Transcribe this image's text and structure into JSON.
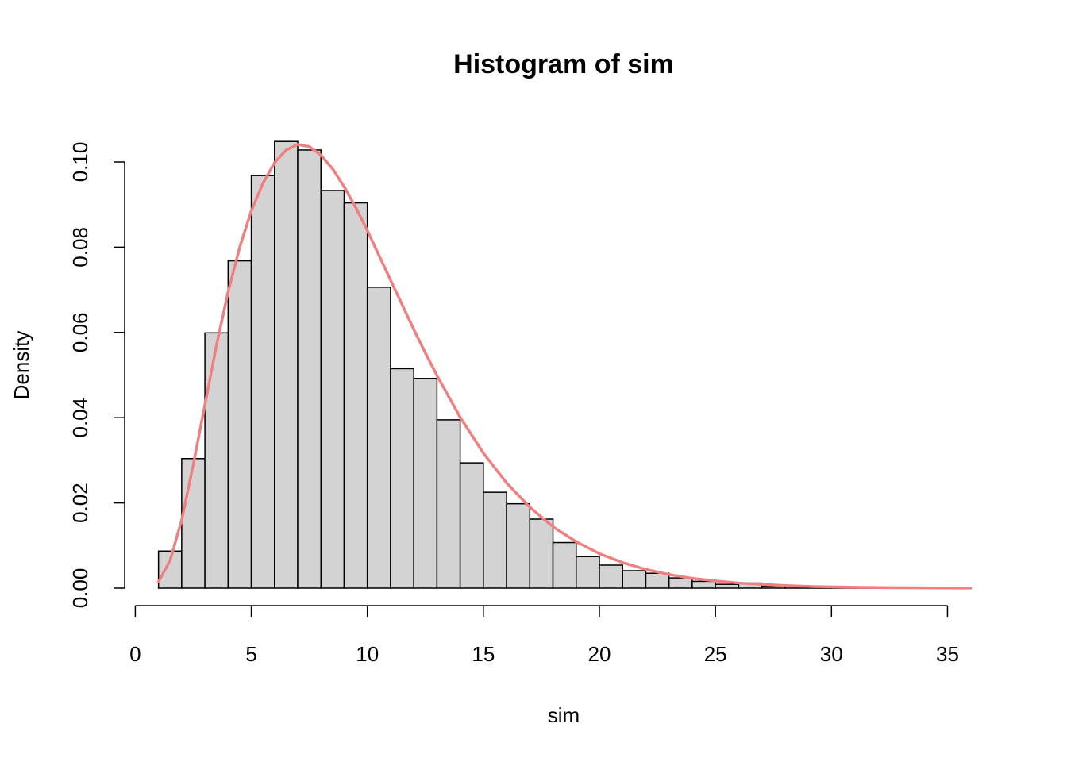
{
  "chart_data": {
    "type": "bar",
    "title": "Histogram of sim",
    "xlabel": "sim",
    "ylabel": "Density",
    "xlim": [
      0,
      36
    ],
    "ylim": [
      0,
      0.105
    ],
    "x_ticks": [
      0,
      5,
      10,
      15,
      20,
      25,
      30,
      35
    ],
    "x_tick_labels": [
      "0",
      "5",
      "10",
      "15",
      "20",
      "25",
      "30",
      "35"
    ],
    "y_ticks": [
      0,
      0.02,
      0.04,
      0.06,
      0.08,
      0.1
    ],
    "y_tick_labels": [
      "0.00",
      "0.02",
      "0.04",
      "0.06",
      "0.08",
      "0.10"
    ],
    "bins": [
      {
        "start": 1,
        "end": 2,
        "density": 0.0087
      },
      {
        "start": 2,
        "end": 3,
        "density": 0.0304
      },
      {
        "start": 3,
        "end": 4,
        "density": 0.0599
      },
      {
        "start": 4,
        "end": 5,
        "density": 0.0768
      },
      {
        "start": 5,
        "end": 6,
        "density": 0.0968
      },
      {
        "start": 6,
        "end": 7,
        "density": 0.1048
      },
      {
        "start": 7,
        "end": 8,
        "density": 0.1028
      },
      {
        "start": 8,
        "end": 9,
        "density": 0.0933
      },
      {
        "start": 9,
        "end": 10,
        "density": 0.0904
      },
      {
        "start": 10,
        "end": 11,
        "density": 0.0706
      },
      {
        "start": 11,
        "end": 12,
        "density": 0.0515
      },
      {
        "start": 12,
        "end": 13,
        "density": 0.0492
      },
      {
        "start": 13,
        "end": 14,
        "density": 0.0395
      },
      {
        "start": 14,
        "end": 15,
        "density": 0.0294
      },
      {
        "start": 15,
        "end": 16,
        "density": 0.0225
      },
      {
        "start": 16,
        "end": 17,
        "density": 0.0198
      },
      {
        "start": 17,
        "end": 18,
        "density": 0.0162
      },
      {
        "start": 18,
        "end": 19,
        "density": 0.0107
      },
      {
        "start": 19,
        "end": 20,
        "density": 0.0074
      },
      {
        "start": 20,
        "end": 21,
        "density": 0.0054
      },
      {
        "start": 21,
        "end": 22,
        "density": 0.0041
      },
      {
        "start": 22,
        "end": 23,
        "density": 0.0035
      },
      {
        "start": 23,
        "end": 24,
        "density": 0.0024
      },
      {
        "start": 24,
        "end": 25,
        "density": 0.0016
      },
      {
        "start": 25,
        "end": 26,
        "density": 0.0009
      },
      {
        "start": 26,
        "end": 27,
        "density": 0.0012
      },
      {
        "start": 27,
        "end": 28,
        "density": 0.0005
      },
      {
        "start": 28,
        "end": 29,
        "density": 0.0006
      },
      {
        "start": 29,
        "end": 30,
        "density": 0.0003
      },
      {
        "start": 30,
        "end": 31,
        "density": 0.0003
      },
      {
        "start": 31,
        "end": 32,
        "density": 0.0001
      },
      {
        "start": 32,
        "end": 33,
        "density": 0.0001
      },
      {
        "start": 33,
        "end": 34,
        "density": 0.0001
      },
      {
        "start": 34,
        "end": 35,
        "density": 0.0002
      },
      {
        "start": 35,
        "end": 36,
        "density": 0.0002
      }
    ],
    "density_curve": {
      "color": "#f08080",
      "x": [
        1,
        1.5,
        2,
        2.5,
        3,
        3.5,
        4,
        4.5,
        5,
        5.5,
        6,
        6.5,
        7,
        7.5,
        8,
        8.5,
        9,
        9.5,
        10,
        10.5,
        11,
        11.5,
        12,
        12.5,
        13,
        14,
        15,
        16,
        17,
        18,
        19,
        20,
        21,
        22,
        23,
        24,
        25,
        26,
        27,
        28,
        29,
        30,
        31,
        32,
        33,
        34,
        35,
        36
      ],
      "y": [
        0.0015,
        0.0065,
        0.016,
        0.029,
        0.043,
        0.057,
        0.0695,
        0.08,
        0.0885,
        0.095,
        0.0998,
        0.1028,
        0.1041,
        0.1036,
        0.1016,
        0.0984,
        0.0942,
        0.0893,
        0.0839,
        0.0781,
        0.0723,
        0.0665,
        0.0607,
        0.0552,
        0.0499,
        0.0401,
        0.0317,
        0.0247,
        0.019,
        0.0144,
        0.0109,
        0.0081,
        0.006,
        0.0044,
        0.0032,
        0.0023,
        0.0017,
        0.0012,
        0.0009,
        0.0006,
        0.0004,
        0.0003,
        0.0002,
        0.00015,
        0.0001,
        7e-05,
        5e-05,
        3e-05
      ]
    }
  }
}
